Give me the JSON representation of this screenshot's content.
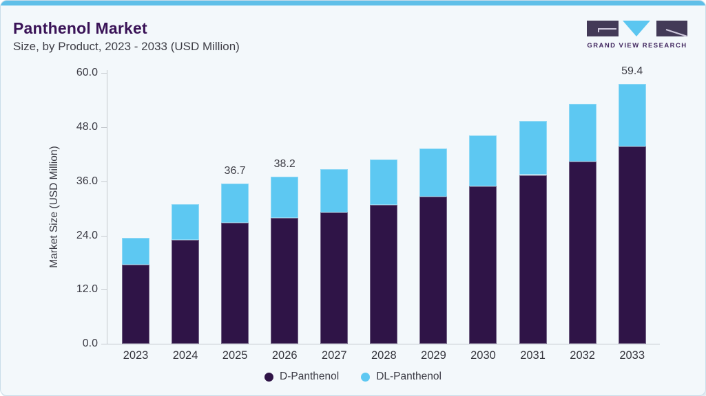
{
  "card": {
    "title": "Panthenol Market",
    "subtitle": "Size, by Product, 2023 - 2033 (USD Million)",
    "accent_color": "#5fbfe8"
  },
  "logo": {
    "name": "Grand View Research",
    "text": "GRAND VIEW RESEARCH",
    "dark_color": "#433a57",
    "blue_color": "#5bc6f0"
  },
  "chart_data": {
    "type": "bar",
    "subtype": "stacked-vertical",
    "title": "Panthenol Market Size, by Product, 2023 - 2033 (USD Million)",
    "xlabel": "",
    "ylabel": "Market Size (USD Million)",
    "ylim": [
      0,
      60
    ],
    "yticks": [
      0,
      12,
      24,
      36,
      48,
      60
    ],
    "ytick_labels": [
      "0.0",
      "12.0",
      "24.0",
      "36.0",
      "48.0",
      "60.0"
    ],
    "grid": false,
    "legend_position": "bottom",
    "categories": [
      "2023",
      "2024",
      "2025",
      "2026",
      "2027",
      "2028",
      "2029",
      "2030",
      "2031",
      "2032",
      "2033"
    ],
    "series": [
      {
        "name": "D-Panthenol",
        "color": "#2f1447",
        "values": [
          18.1,
          23.8,
          27.6,
          28.8,
          30.1,
          31.8,
          33.7,
          36.0,
          38.6,
          41.7,
          45.1
        ]
      },
      {
        "name": "DL-Panthenol",
        "color": "#5dc8f2",
        "values": [
          6.1,
          8.1,
          9.1,
          9.4,
          9.9,
          10.4,
          11.0,
          11.6,
          12.4,
          13.1,
          14.3
        ]
      }
    ],
    "totals": [
      24.2,
      31.9,
      36.7,
      38.2,
      40.0,
      42.2,
      44.7,
      47.6,
      51.0,
      54.8,
      59.4
    ],
    "bar_labels": {
      "2025": "36.7",
      "2026": "38.2",
      "2033": "59.4"
    },
    "legend": [
      {
        "label": "D-Panthenol",
        "color": "#2f1447"
      },
      {
        "label": "DL-Panthenol",
        "color": "#5dc8f2"
      }
    ]
  }
}
